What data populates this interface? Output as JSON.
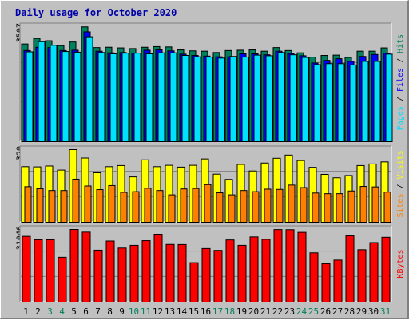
{
  "chart_data": {
    "title": "Daily usage for October 2020",
    "days": [
      "1",
      "2",
      "3",
      "4",
      "5",
      "6",
      "7",
      "8",
      "9",
      "10",
      "11",
      "12",
      "13",
      "14",
      "15",
      "16",
      "17",
      "18",
      "19",
      "20",
      "21",
      "22",
      "23",
      "24",
      "25",
      "26",
      "27",
      "28",
      "29",
      "30",
      "31"
    ],
    "weekend_days": [
      "3",
      "4",
      "10",
      "11",
      "17",
      "18",
      "24",
      "25",
      "31"
    ],
    "colors": {
      "hits": "#00805c",
      "files": "#0000ff",
      "pages": "#00e0ff",
      "visits": "#ffff00",
      "sites": "#ff8000",
      "kbytes": "#ff0000",
      "weekday_label": "#000000",
      "weekend_label": "#00805c"
    },
    "panels": [
      {
        "type": "bar",
        "max_label": "3507",
        "ylim": [
          0,
          3507
        ],
        "legend": [
          "Pages",
          "Files",
          "Hits"
        ],
        "series": [
          {
            "name": "Hits",
            "values": [
              2980,
              3150,
              3080,
              2930,
              3040,
              3500,
              2870,
              2880,
              2860,
              2840,
              2880,
              2900,
              2890,
              2800,
              2770,
              2760,
              2720,
              2780,
              2790,
              2800,
              2760,
              2870,
              2780,
              2710,
              2580,
              2630,
              2640,
              2570,
              2760,
              2760,
              2860
            ]
          },
          {
            "name": "Files",
            "values": [
              2780,
              2880,
              2870,
              2780,
              2790,
              3350,
              2760,
              2710,
              2720,
              2700,
              2790,
              2800,
              2770,
              2670,
              2630,
              2610,
              2590,
              2590,
              2680,
              2680,
              2650,
              2760,
              2690,
              2620,
              2400,
              2480,
              2530,
              2450,
              2600,
              2660,
              2700
            ]
          },
          {
            "name": "Pages",
            "values": [
              2740,
              3050,
              2940,
              2750,
              2730,
              3200,
              2720,
              2680,
              2700,
              2700,
              2680,
              2710,
              2710,
              2630,
              2590,
              2580,
              2550,
              2600,
              2580,
              2640,
              2620,
              2720,
              2650,
              2570,
              2350,
              2380,
              2380,
              2340,
              2450,
              2450,
              2670
            ]
          }
        ]
      },
      {
        "type": "bar",
        "max_label": "320",
        "ylim": [
          0,
          320
        ],
        "legend": [
          "Sites",
          "Visits"
        ],
        "series": [
          {
            "name": "Visits",
            "values": [
              245,
              244,
              248,
              230,
              320,
              283,
              218,
              245,
              250,
              200,
              275,
              245,
              251,
              243,
              251,
              279,
              212,
              189,
              255,
              226,
              261,
              282,
              296,
              272,
              242,
              211,
              196,
              206,
              250,
              257,
              266
            ]
          },
          {
            "name": "Sites",
            "values": [
              157,
              148,
              140,
              140,
              190,
              160,
              144,
              162,
              132,
              135,
              150,
              140,
              121,
              147,
              149,
              166,
              130,
              121,
              140,
              135,
              146,
              145,
              164,
              153,
              129,
              126,
              126,
              138,
              158,
              156,
              133
            ]
          }
        ]
      },
      {
        "type": "bar",
        "max_label": "31046",
        "ylim": [
          0,
          31046
        ],
        "legend": [
          "KBytes"
        ],
        "series": [
          {
            "name": "KBytes",
            "values": [
              28100,
              26650,
              26650,
              19150,
              31046,
              29900,
              22200,
              26100,
              23100,
              24250,
              26250,
              29000,
              24650,
              24600,
              16850,
              22900,
              22100,
              26550,
              24260,
              27850,
              26800,
              31000,
              30950,
              29810,
              21050,
              16400,
              17950,
              28300,
              22400,
              25420,
              27700
            ]
          }
        ]
      }
    ]
  }
}
